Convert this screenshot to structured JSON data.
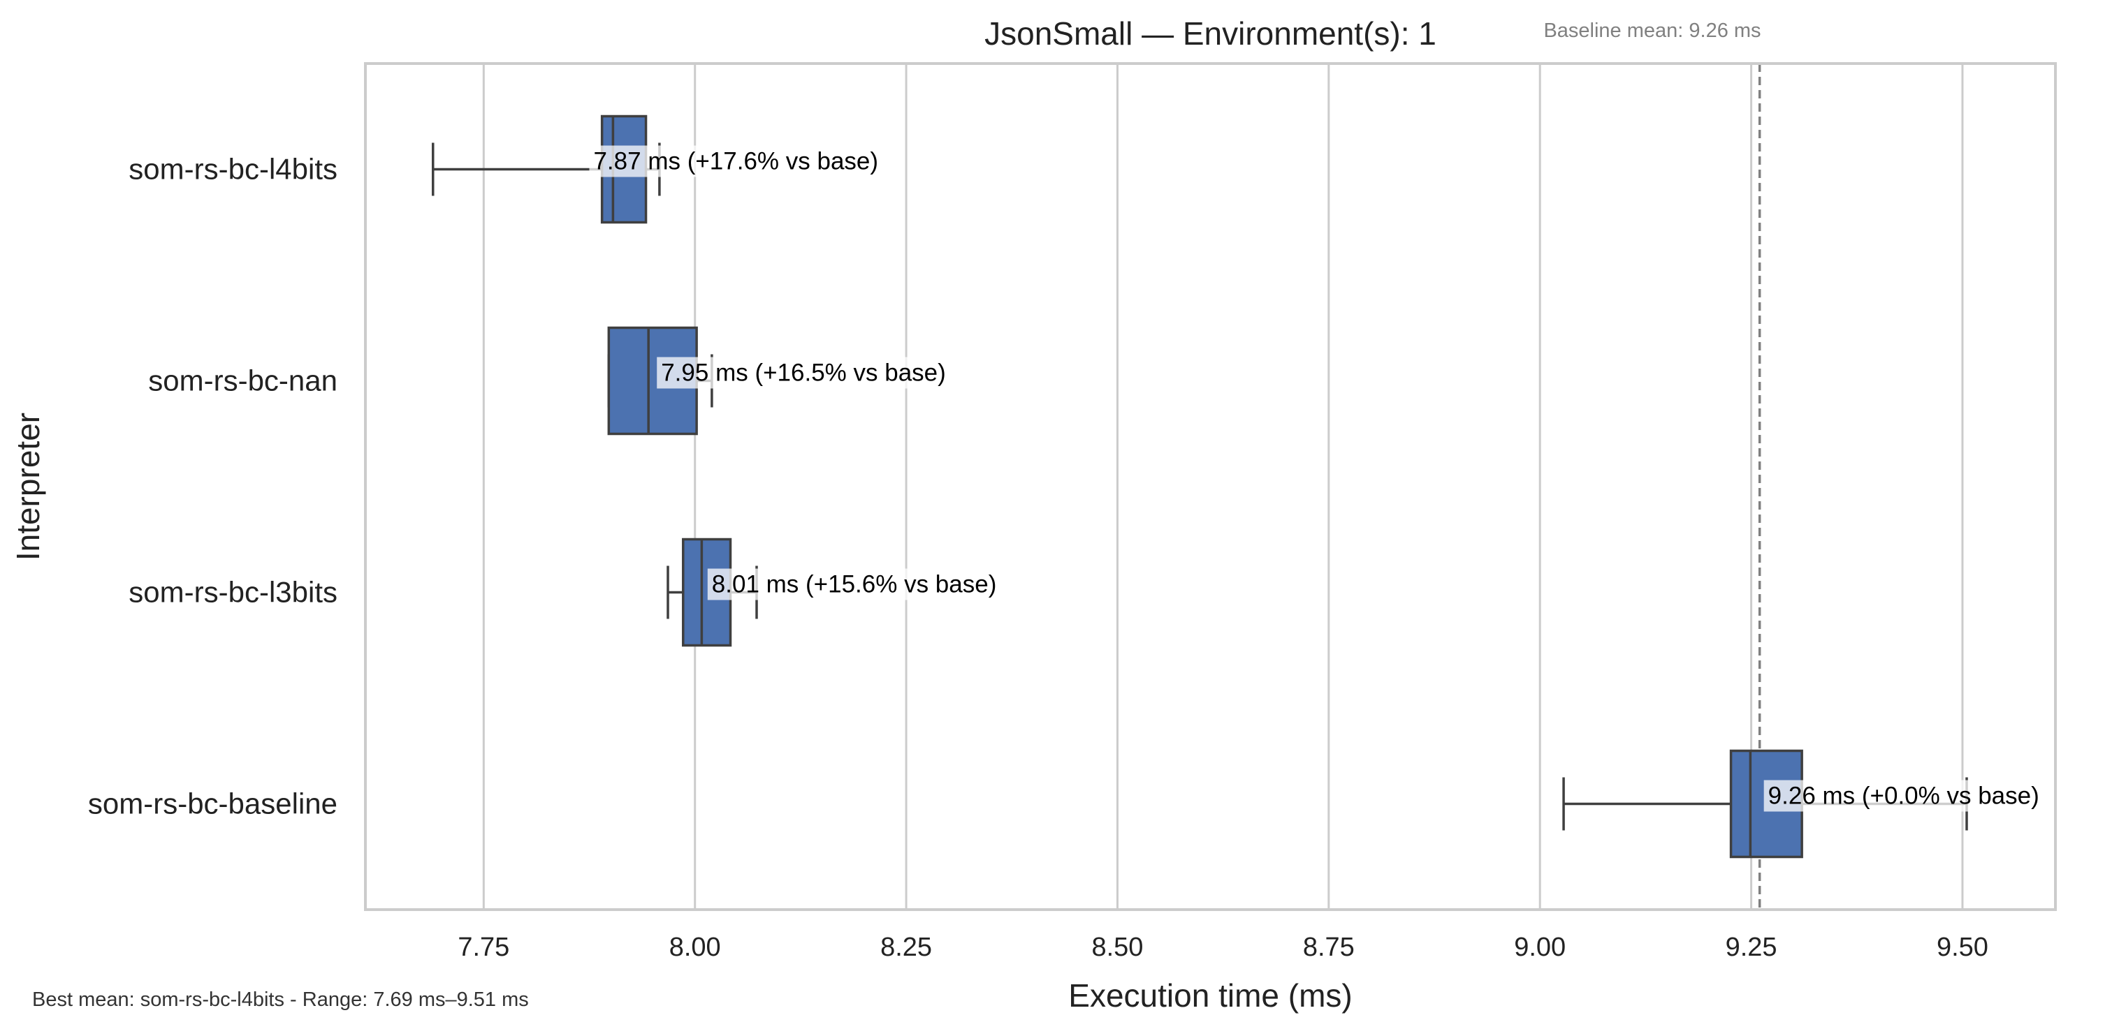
{
  "chart_data": {
    "type": "boxplot",
    "orientation": "horizontal",
    "title": "JsonSmall — Environment(s): 1",
    "xlabel": "Execution time (ms)",
    "ylabel": "Interpreter",
    "xlim": [
      7.61,
      9.61
    ],
    "xticks": [
      7.75,
      8.0,
      8.25,
      8.5,
      8.75,
      9.0,
      9.25,
      9.5
    ],
    "xtick_labels": [
      "7.75",
      "8.00",
      "8.25",
      "8.50",
      "8.75",
      "9.00",
      "9.25",
      "9.50"
    ],
    "grid": "vertical",
    "box_color": "#4c72b0",
    "categories": [
      "som-rs-bc-l4bits",
      "som-rs-bc-nan",
      "som-rs-bc-l3bits",
      "som-rs-bc-baseline"
    ],
    "boxes": [
      {
        "name": "som-rs-bc-l4bits",
        "whisker_low": 7.69,
        "q1": 7.89,
        "median": 7.903,
        "q3": 7.942,
        "whisker_high": 7.958
      },
      {
        "name": "som-rs-bc-nan",
        "whisker_low": 7.898,
        "q1": 7.898,
        "median": 7.945,
        "q3": 8.002,
        "whisker_high": 8.02
      },
      {
        "name": "som-rs-bc-l3bits",
        "whisker_low": 7.968,
        "q1": 7.986,
        "median": 8.008,
        "q3": 8.042,
        "whisker_high": 8.073
      },
      {
        "name": "som-rs-bc-baseline",
        "whisker_low": 9.028,
        "q1": 9.226,
        "median": 9.249,
        "q3": 9.31,
        "whisker_high": 9.505
      }
    ],
    "means": [
      7.87,
      7.95,
      8.01,
      9.26
    ],
    "annotations": [
      "7.87 ms  (+17.6% vs base)",
      "7.95 ms  (+16.5% vs base)",
      "8.01 ms  (+15.6% vs base)",
      "9.26 ms  (+0.0% vs base)"
    ],
    "baseline_mean": 9.26,
    "baseline_label": "Baseline mean: 9.26 ms",
    "footer_note": "Best mean: som-rs-bc-l4bits - Range: 7.69 ms–9.51 ms"
  }
}
